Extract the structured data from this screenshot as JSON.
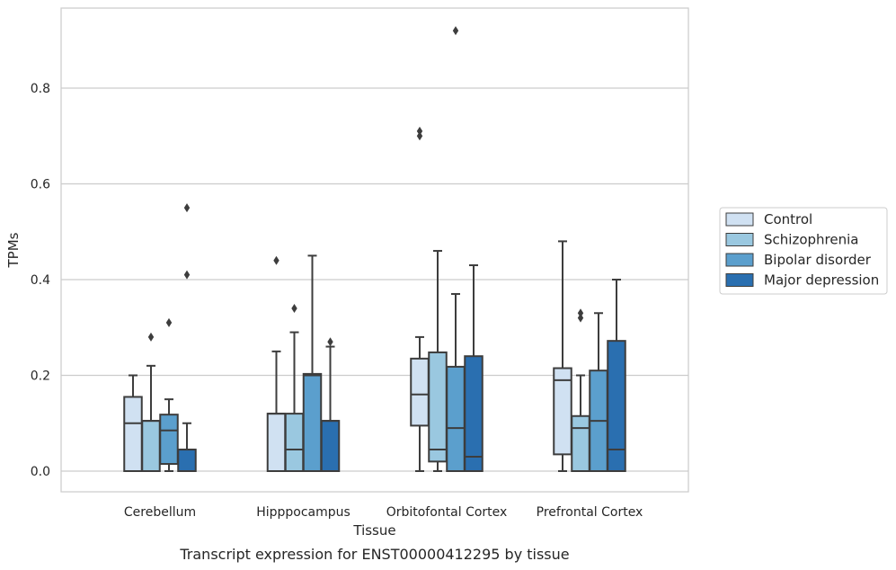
{
  "chart_data": {
    "type": "box",
    "xlabel": "Tissue",
    "ylabel": "TPMs",
    "caption": "Transcript expression for ENST00000412295 by tissue",
    "categories": [
      "Cerebellum",
      "Hipppocampus",
      "Orbitofontal Cortex",
      "Prefrontal Cortex"
    ],
    "yticks": [
      "0.0",
      "0.2",
      "0.4",
      "0.6",
      "0.8"
    ],
    "ylim": [
      -0.045,
      0.968
    ],
    "grid": true,
    "legend_position": "right",
    "series": [
      {
        "name": "Control",
        "color": "#d0e1f2",
        "boxes": [
          {
            "q1": 0.0,
            "median": 0.1,
            "q3": 0.155,
            "whisker_low": 0.0,
            "whisker_high": 0.2,
            "outliers": []
          },
          {
            "q1": 0.0,
            "median": 0.12,
            "q3": 0.12,
            "whisker_low": 0.0,
            "whisker_high": 0.25,
            "outliers": [
              0.44
            ]
          },
          {
            "q1": 0.095,
            "median": 0.16,
            "q3": 0.235,
            "whisker_low": 0.0,
            "whisker_high": 0.28,
            "outliers": [
              0.7,
              0.71
            ]
          },
          {
            "q1": 0.035,
            "median": 0.19,
            "q3": 0.215,
            "whisker_low": 0.0,
            "whisker_high": 0.48,
            "outliers": []
          }
        ]
      },
      {
        "name": "Schizophrenia",
        "color": "#9ac8e0",
        "boxes": [
          {
            "q1": 0.0,
            "median": 0.105,
            "q3": 0.105,
            "whisker_low": 0.0,
            "whisker_high": 0.22,
            "outliers": [
              0.28
            ]
          },
          {
            "q1": 0.0,
            "median": 0.045,
            "q3": 0.12,
            "whisker_low": 0.0,
            "whisker_high": 0.29,
            "outliers": [
              0.34
            ]
          },
          {
            "q1": 0.02,
            "median": 0.045,
            "q3": 0.248,
            "whisker_low": 0.0,
            "whisker_high": 0.46,
            "outliers": []
          },
          {
            "q1": 0.0,
            "median": 0.09,
            "q3": 0.115,
            "whisker_low": 0.0,
            "whisker_high": 0.2,
            "outliers": [
              0.32,
              0.33
            ]
          }
        ]
      },
      {
        "name": "Bipolar disorder",
        "color": "#5b9fcd",
        "boxes": [
          {
            "q1": 0.015,
            "median": 0.085,
            "q3": 0.118,
            "whisker_low": 0.0,
            "whisker_high": 0.15,
            "outliers": [
              0.31
            ]
          },
          {
            "q1": 0.0,
            "median": 0.2,
            "q3": 0.203,
            "whisker_low": 0.0,
            "whisker_high": 0.45,
            "outliers": []
          },
          {
            "q1": 0.0,
            "median": 0.09,
            "q3": 0.218,
            "whisker_low": 0.0,
            "whisker_high": 0.37,
            "outliers": [
              0.92
            ]
          },
          {
            "q1": 0.0,
            "median": 0.105,
            "q3": 0.21,
            "whisker_low": 0.0,
            "whisker_high": 0.33,
            "outliers": []
          }
        ]
      },
      {
        "name": "Major depression",
        "color": "#2a6fb0",
        "boxes": [
          {
            "q1": 0.0,
            "median": 0.045,
            "q3": 0.045,
            "whisker_low": 0.0,
            "whisker_high": 0.1,
            "outliers": [
              0.41,
              0.55
            ]
          },
          {
            "q1": 0.0,
            "median": 0.105,
            "q3": 0.105,
            "whisker_low": 0.0,
            "whisker_high": 0.26,
            "outliers": [
              0.27
            ]
          },
          {
            "q1": 0.0,
            "median": 0.03,
            "q3": 0.24,
            "whisker_low": 0.0,
            "whisker_high": 0.43,
            "outliers": []
          },
          {
            "q1": 0.0,
            "median": 0.045,
            "q3": 0.272,
            "whisker_low": 0.0,
            "whisker_high": 0.4,
            "outliers": []
          }
        ]
      }
    ]
  }
}
